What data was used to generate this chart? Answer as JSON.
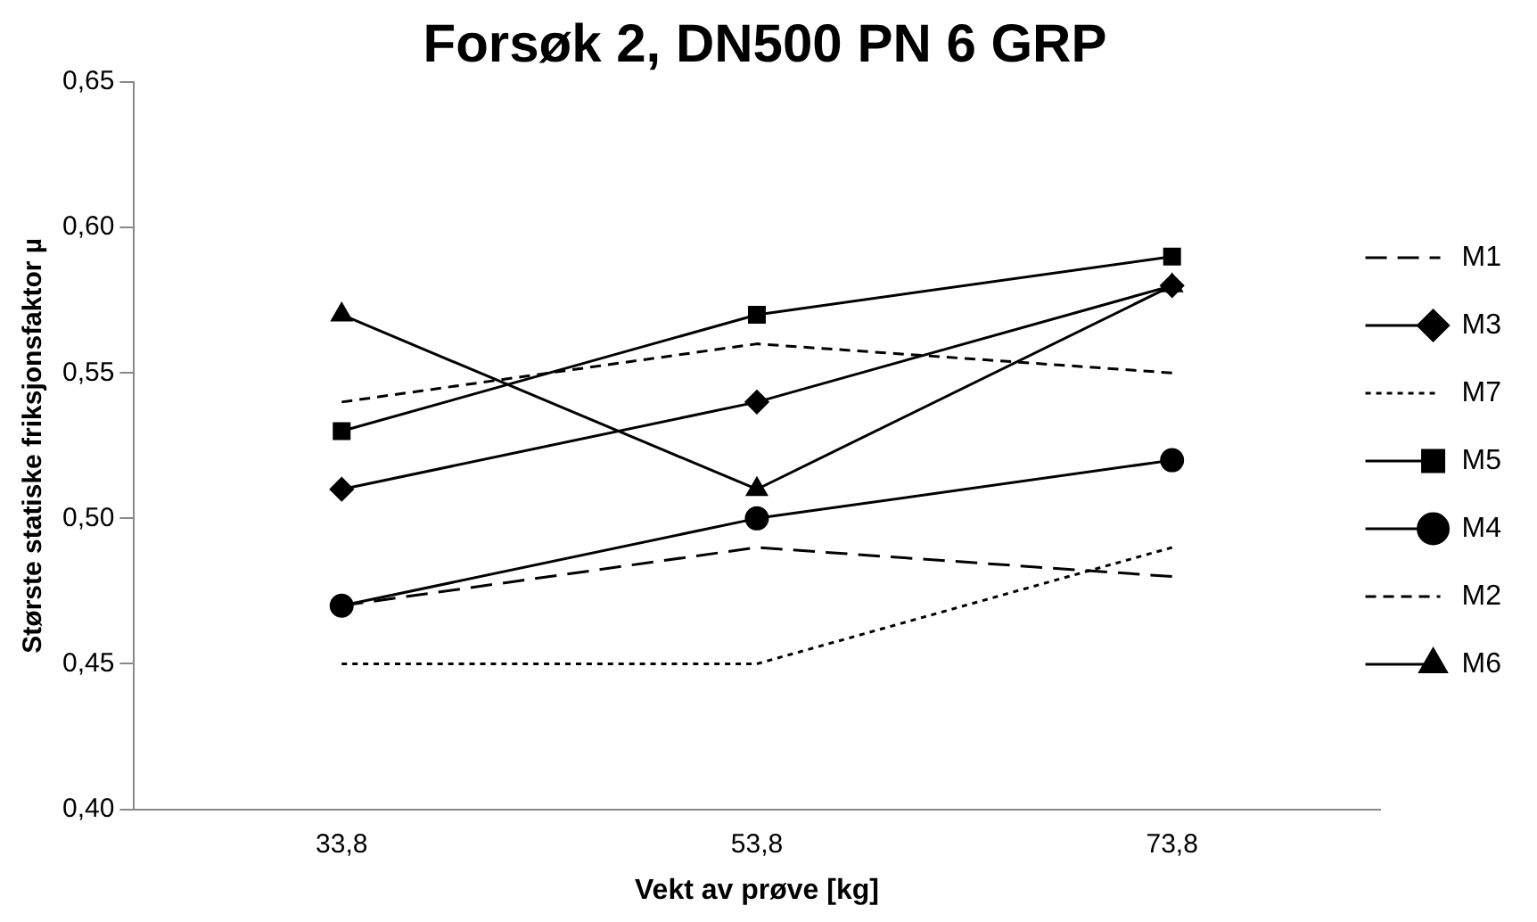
{
  "chart_data": {
    "type": "line",
    "title": "Forsøk 2, DN500 PN 6 GRP",
    "xlabel": "Vekt av prøve [kg]",
    "ylabel": "Største statiske friksjonsfaktor µ",
    "categories": [
      "33,8",
      "53,8",
      "73,8"
    ],
    "ylim": [
      0.4,
      0.65
    ],
    "yticks": [
      {
        "value": 0.4,
        "label": "0,40"
      },
      {
        "value": 0.45,
        "label": "0,45"
      },
      {
        "value": 0.5,
        "label": "0,50"
      },
      {
        "value": 0.55,
        "label": "0,55"
      },
      {
        "value": 0.6,
        "label": "0,60"
      },
      {
        "value": 0.65,
        "label": "0,65"
      }
    ],
    "grid": false,
    "legend": "right",
    "series": [
      {
        "name": "M1",
        "color": "#000000",
        "values": [
          0.47,
          0.49,
          0.48
        ],
        "line_style": "dashed",
        "marker": "none"
      },
      {
        "name": "M3",
        "color": "#000000",
        "values": [
          0.51,
          0.54,
          0.58
        ],
        "line_style": "solid",
        "marker": "diamond"
      },
      {
        "name": "M7",
        "color": "#000000",
        "values": [
          0.45,
          0.45,
          0.49
        ],
        "line_style": "dotted",
        "marker": "none"
      },
      {
        "name": "M5",
        "color": "#000000",
        "values": [
          0.53,
          0.57,
          0.59
        ],
        "line_style": "solid",
        "marker": "square"
      },
      {
        "name": "M4",
        "color": "#000000",
        "values": [
          0.47,
          0.5,
          0.52
        ],
        "line_style": "solid",
        "marker": "circle"
      },
      {
        "name": "M2",
        "color": "#000000",
        "values": [
          0.54,
          0.56,
          0.55
        ],
        "line_style": "shortdash",
        "marker": "none"
      },
      {
        "name": "M6",
        "color": "#000000",
        "values": [
          0.57,
          0.51,
          0.58
        ],
        "line_style": "solid",
        "marker": "triangle"
      }
    ]
  }
}
